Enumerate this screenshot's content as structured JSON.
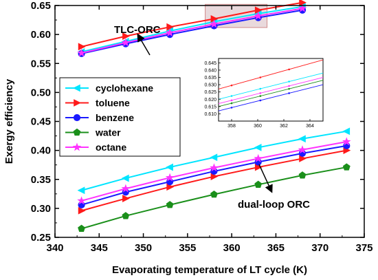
{
  "chart_data": {
    "type": "line",
    "xlabel": "Evaporating temperature of LT cycle (K)",
    "ylabel": "Exergy efficiency",
    "xlim": [
      340,
      375
    ],
    "ylim": [
      0.25,
      0.65
    ],
    "xticks": [
      "340",
      "345",
      "350",
      "355",
      "360",
      "365",
      "370",
      "375"
    ],
    "yticks": [
      "0.25",
      "0.30",
      "0.35",
      "0.40",
      "0.45",
      "0.50",
      "0.55",
      "0.60",
      "0.65"
    ],
    "grid": false,
    "legend_position": "left",
    "x_tlc": [
      343,
      348,
      353,
      358,
      363,
      368
    ],
    "x_dual": [
      343,
      348,
      353,
      358,
      363,
      368,
      373
    ],
    "series": [
      {
        "name": "cyclohexane",
        "color": "#00e5ff",
        "marker": "triangle-left",
        "tlc": [
          0.57,
          0.588,
          0.606,
          0.622,
          0.636,
          0.648
        ],
        "dual": [
          0.331,
          0.352,
          0.371,
          0.388,
          0.405,
          0.42,
          0.433
        ]
      },
      {
        "name": "toluene",
        "color": "#ff1a1a",
        "marker": "triangle-right",
        "tlc": [
          0.579,
          0.597,
          0.613,
          0.627,
          0.642,
          0.655
        ],
        "dual": [
          0.296,
          0.317,
          0.337,
          0.355,
          0.371,
          0.386,
          0.4
        ]
      },
      {
        "name": "benzene",
        "color": "#1a1aff",
        "marker": "circle",
        "tlc": [
          0.567,
          0.584,
          0.6,
          0.615,
          0.629,
          0.642
        ],
        "dual": [
          0.306,
          0.328,
          0.346,
          0.364,
          0.38,
          0.395,
          0.408
        ]
      },
      {
        "name": "water",
        "color": "#1a8f1a",
        "marker": "pentagon",
        "tlc": [],
        "dual": [
          0.265,
          0.287,
          0.306,
          0.324,
          0.341,
          0.357,
          0.371
        ]
      },
      {
        "name": "octane",
        "color": "#ff33ff",
        "marker": "star",
        "tlc": [
          0.568,
          0.586,
          0.603,
          0.618,
          0.632,
          0.645
        ],
        "dual": [
          0.313,
          0.334,
          0.353,
          0.37,
          0.386,
          0.401,
          0.415
        ]
      }
    ],
    "annotations": {
      "tlc": "TLC-ORC",
      "dual": "dual-loop ORC"
    },
    "inset": {
      "xlim": [
        357,
        365
      ],
      "ylim": [
        0.605,
        0.648
      ],
      "xticks": [
        "358",
        "360",
        "362",
        "364"
      ],
      "yticks": [
        "0.610",
        "0.615",
        "0.620",
        "0.625",
        "0.630",
        "0.635",
        "0.640",
        "0.645"
      ],
      "order": [
        "toluene",
        "cyclohexane",
        "octane",
        "water",
        "benzene"
      ],
      "lines": [
        {
          "y0": 0.627,
          "y1": 0.647
        },
        {
          "y0": 0.62,
          "y1": 0.638
        },
        {
          "y0": 0.617,
          "y1": 0.635
        },
        {
          "y0": 0.615,
          "y1": 0.633
        },
        {
          "y0": 0.612,
          "y1": 0.63
        }
      ]
    }
  }
}
